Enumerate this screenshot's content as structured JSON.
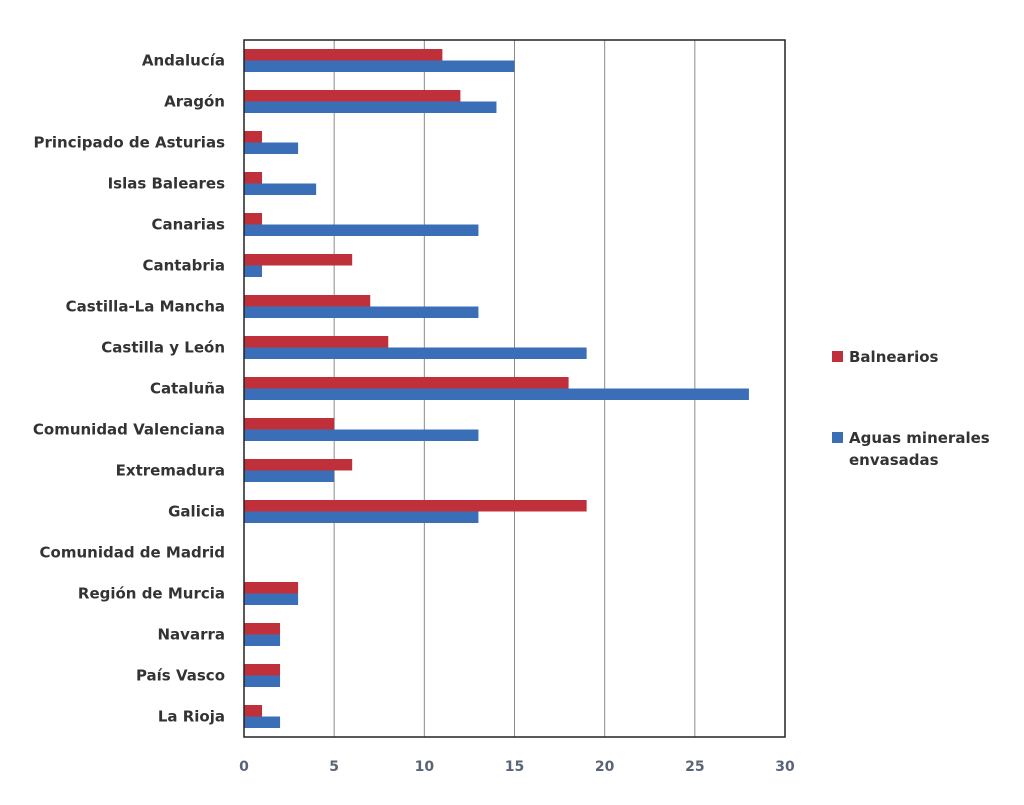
{
  "chart_data": {
    "type": "bar",
    "orientation": "horizontal",
    "categories": [
      "Andalucía",
      "Aragón",
      "Principado de Asturias",
      "Islas Baleares",
      "Canarias",
      "Cantabria",
      "Castilla-La Mancha",
      "Castilla y León",
      "Cataluña",
      "Comunidad Valenciana",
      "Extremadura",
      "Galicia",
      "Comunidad de Madrid",
      "Región de Murcia",
      "Navarra",
      "País Vasco",
      "La Rioja"
    ],
    "series": [
      {
        "name": "Balnearios",
        "color": "#c0303a",
        "values": [
          11,
          12,
          1,
          1,
          1,
          6,
          7,
          8,
          18,
          5,
          6,
          19,
          0,
          3,
          2,
          2,
          1
        ]
      },
      {
        "name": "Aguas minerales envasadas",
        "name_lines": [
          "Aguas minerales",
          "envasadas"
        ],
        "color": "#3a6fb8",
        "values": [
          15,
          14,
          3,
          4,
          13,
          1,
          13,
          19,
          28,
          13,
          5,
          13,
          0,
          3,
          2,
          2,
          2
        ]
      }
    ],
    "xlim": [
      0,
      30
    ],
    "xticks": [
      0,
      5,
      10,
      15,
      20,
      25,
      30
    ],
    "grid": "vertical",
    "legend_position": "right"
  }
}
